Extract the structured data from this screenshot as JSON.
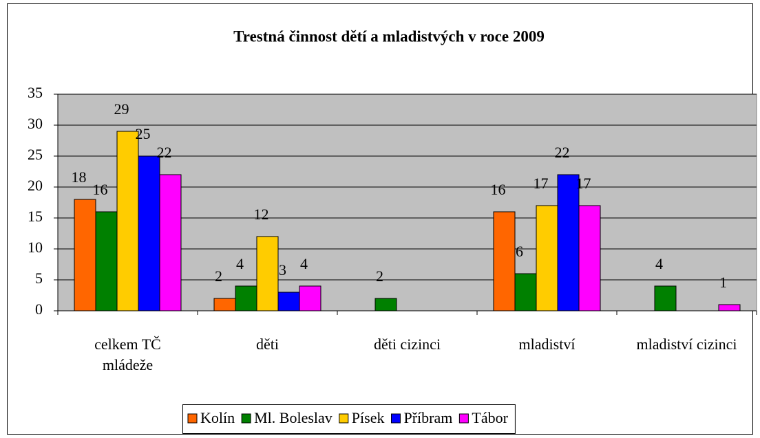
{
  "chart_data": {
    "type": "bar",
    "title": "Trestná činnost dětí a mladistvých v roce 2009",
    "categories": [
      "celkem TČ mládeže",
      "děti",
      "děti cizinci",
      "mladiství",
      "mladiství cizinci"
    ],
    "series": [
      {
        "name": "Kolín",
        "color": "#ff6600",
        "values": [
          18,
          2,
          null,
          16,
          null
        ]
      },
      {
        "name": "Ml. Boleslav",
        "color": "#008000",
        "values": [
          16,
          4,
          2,
          6,
          4
        ]
      },
      {
        "name": "Písek",
        "color": "#ffcc00",
        "values": [
          29,
          12,
          null,
          17,
          null
        ]
      },
      {
        "name": "Příbram",
        "color": "#0000ff",
        "values": [
          25,
          3,
          null,
          22,
          null
        ]
      },
      {
        "name": "Tábor",
        "color": "#ff00ff",
        "values": [
          22,
          4,
          null,
          17,
          1
        ]
      }
    ],
    "ylim": [
      0,
      35
    ],
    "yticks": [
      0,
      5,
      10,
      15,
      20,
      25,
      30,
      35
    ],
    "grid": true,
    "legend": "bottom"
  }
}
